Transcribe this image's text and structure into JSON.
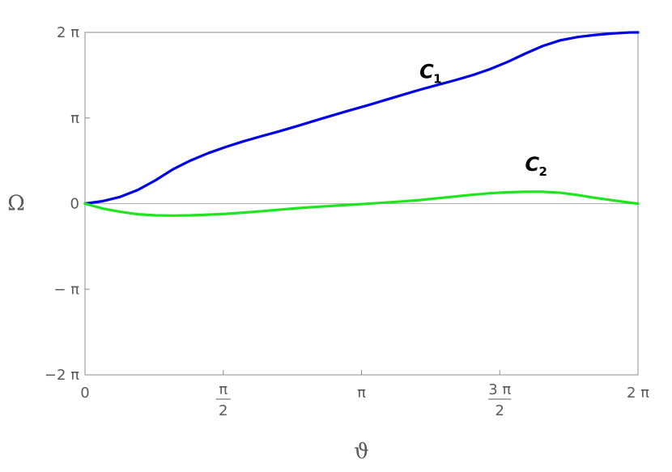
{
  "chart_data": {
    "type": "line",
    "xlabel": "ϑ",
    "ylabel": "Ω",
    "xlim": [
      0,
      6.2832
    ],
    "ylim": [
      -6.2832,
      6.2832
    ],
    "grid": false,
    "zero_line": true,
    "x_ticks": [
      {
        "value": 0,
        "num": "0",
        "den": ""
      },
      {
        "value": 1.5708,
        "num": "π",
        "den": "2"
      },
      {
        "value": 3.1416,
        "num": "π",
        "den": ""
      },
      {
        "value": 4.7124,
        "num": "3 π",
        "den": "2"
      },
      {
        "value": 6.2832,
        "num": "2 π",
        "den": ""
      }
    ],
    "y_ticks": [
      {
        "value": 6.2832,
        "label": "2 π"
      },
      {
        "value": 3.1416,
        "label": "π"
      },
      {
        "value": 0,
        "label": "0"
      },
      {
        "value": -3.1416,
        "label": "− π"
      },
      {
        "value": -6.2832,
        "label": "−2 π"
      }
    ],
    "series": [
      {
        "name": "C",
        "subscript": "1",
        "color": "#0000e6",
        "x": [
          0,
          0.1999,
          0.3999,
          0.5999,
          0.7998,
          0.9998,
          1.1998,
          1.3997,
          1.5997,
          1.7997,
          1.9996,
          2.1996,
          2.3996,
          2.5995,
          2.7995,
          2.9995,
          3.1994,
          3.3994,
          3.5994,
          3.7994,
          3.9994,
          4.1992,
          4.3992,
          4.5992,
          4.7992,
          4.9991,
          5.1991,
          5.3991,
          5.599,
          5.799,
          5.999,
          6.199,
          6.2832
        ],
        "y": [
          0,
          0.0896,
          0.2478,
          0.5005,
          0.8539,
          1.2607,
          1.5828,
          1.8514,
          2.0803,
          2.2855,
          2.4692,
          2.6468,
          2.8356,
          3.0314,
          3.2242,
          3.415,
          3.5958,
          3.7887,
          3.9834,
          4.1742,
          4.3512,
          4.5233,
          4.7096,
          4.9325,
          5.1964,
          5.4996,
          5.7823,
          5.9912,
          6.1145,
          6.1909,
          6.2455,
          6.2813,
          6.2832
        ]
      },
      {
        "name": "C",
        "subscript": "2",
        "color": "#1ee61e",
        "x": [
          0,
          0.2,
          0.4,
          0.6,
          0.8,
          1.0,
          1.2,
          1.4,
          1.6,
          1.8,
          2.0,
          2.2,
          2.4,
          2.6,
          2.8,
          3.0,
          3.2,
          3.4,
          3.6,
          3.8,
          4.0,
          4.2,
          4.4,
          4.6,
          4.8,
          5.0,
          5.2,
          5.4,
          5.6,
          5.8,
          6.0,
          6.2,
          6.2832
        ],
        "y": [
          0,
          -0.18,
          -0.3,
          -0.39,
          -0.43,
          -0.44,
          -0.43,
          -0.405,
          -0.375,
          -0.33,
          -0.28,
          -0.225,
          -0.17,
          -0.125,
          -0.085,
          -0.045,
          -0.005,
          0.035,
          0.08,
          0.13,
          0.195,
          0.26,
          0.325,
          0.38,
          0.415,
          0.435,
          0.435,
          0.4,
          0.315,
          0.21,
          0.12,
          0.03,
          0
        ]
      }
    ],
    "annotations": [
      {
        "text": "C",
        "subscript": "1",
        "x": 3.8,
        "y": 4.6
      },
      {
        "text": "C",
        "subscript": "2",
        "x": 5.0,
        "y": 1.2
      }
    ]
  }
}
